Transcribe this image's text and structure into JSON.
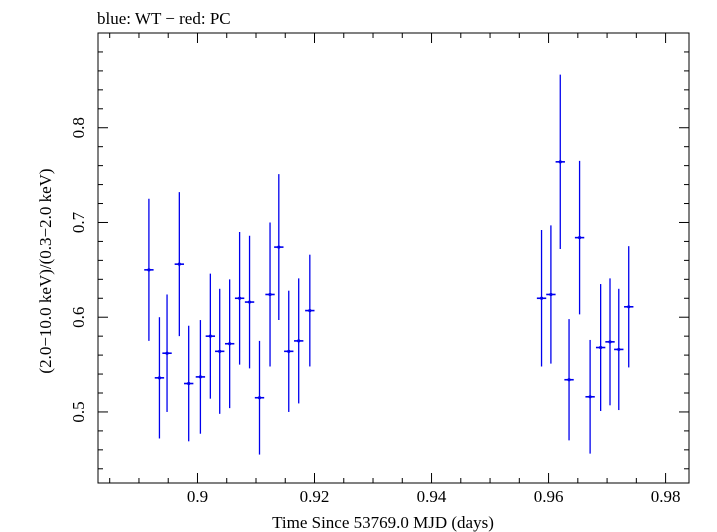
{
  "chart_data": {
    "type": "scatter",
    "title": "blue: WT − red: PC",
    "xlabel": "Time Since 53769.0 MJD (days)",
    "ylabel": "(2.0−10.0 keV)/(0.3−2.0 keV)",
    "xlim": [
      0.883,
      0.984
    ],
    "ylim": [
      0.425,
      0.9
    ],
    "xticks": [
      0.9,
      0.92,
      0.94,
      0.96,
      0.98
    ],
    "xtick_labels": [
      "0.9",
      "0.92",
      "0.94",
      "0.96",
      "0.98"
    ],
    "yticks": [
      0.5,
      0.6,
      0.7,
      0.8
    ],
    "ytick_labels": [
      "0.5",
      "0.6",
      "0.7",
      "0.8"
    ],
    "grid": false,
    "series": [
      {
        "color": "#0000ee",
        "x_half_width": 0.0008,
        "x": [
          0.8917,
          0.8935,
          0.8948,
          0.8969,
          0.8985,
          0.9005,
          0.9022,
          0.9038,
          0.9055,
          0.9072,
          0.9089,
          0.9106,
          0.9124,
          0.9139,
          0.9156,
          0.9173,
          0.9192,
          0.9588,
          0.9604,
          0.962,
          0.9635,
          0.9653,
          0.9671,
          0.9689,
          0.9705,
          0.972,
          0.9737
        ],
        "y": [
          0.65,
          0.536,
          0.562,
          0.656,
          0.53,
          0.537,
          0.58,
          0.564,
          0.572,
          0.62,
          0.616,
          0.515,
          0.624,
          0.674,
          0.564,
          0.575,
          0.607,
          0.62,
          0.624,
          0.764,
          0.534,
          0.684,
          0.516,
          0.568,
          0.574,
          0.566,
          0.611
        ],
        "yerr": [
          0.075,
          0.064,
          0.062,
          0.076,
          0.061,
          0.06,
          0.066,
          0.066,
          0.068,
          0.07,
          0.07,
          0.06,
          0.076,
          0.077,
          0.064,
          0.066,
          0.059,
          0.072,
          0.073,
          0.092,
          0.064,
          0.081,
          0.06,
          0.067,
          0.067,
          0.064,
          0.064
        ]
      }
    ]
  }
}
